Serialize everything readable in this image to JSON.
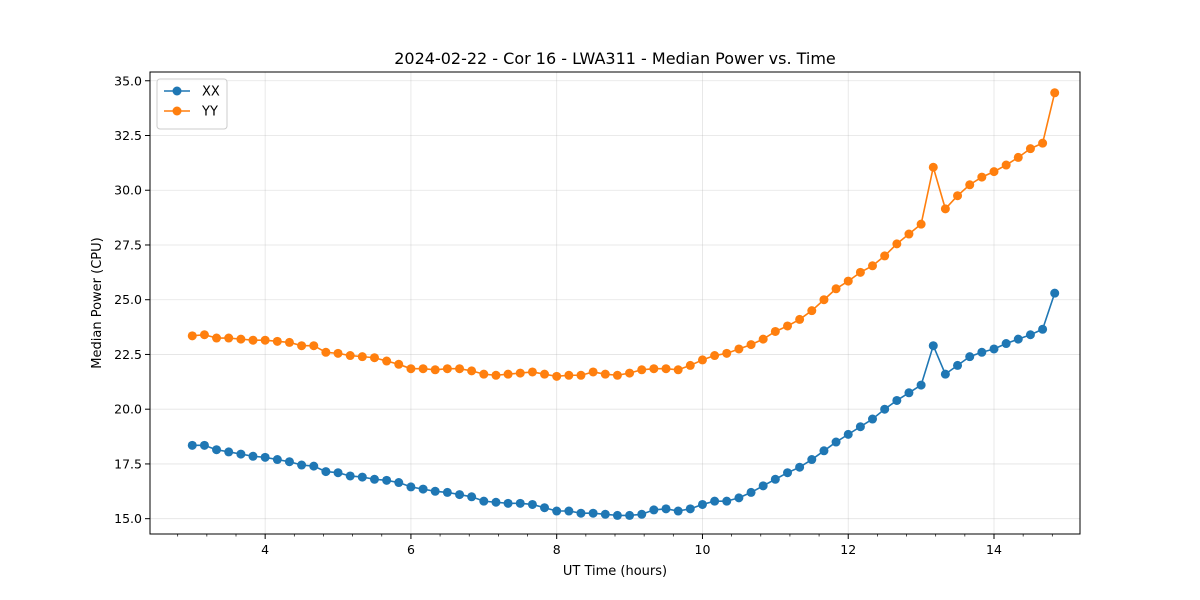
{
  "chart_data": {
    "type": "line",
    "title": "2024-02-22 - Cor 16 - LWA311 - Median Power vs. Time",
    "xlabel": "UT Time (hours)",
    "ylabel": "Median Power (CPU)",
    "xlim": [
      2.42,
      15.18
    ],
    "ylim": [
      14.3,
      35.4
    ],
    "xticks": [
      4,
      6,
      8,
      10,
      12,
      14
    ],
    "xtick_labels": [
      "4",
      "6",
      "8",
      "10",
      "12",
      "14"
    ],
    "yticks": [
      15.0,
      17.5,
      20.0,
      22.5,
      25.0,
      27.5,
      30.0,
      32.5,
      35.0
    ],
    "ytick_labels": [
      "15.0",
      "17.5",
      "20.0",
      "22.5",
      "25.0",
      "27.5",
      "30.0",
      "32.5",
      "35.0"
    ],
    "grid": true,
    "legend_position": "top-left",
    "x": [
      3.0,
      3.167,
      3.333,
      3.5,
      3.667,
      3.833,
      4.0,
      4.167,
      4.333,
      4.5,
      4.667,
      4.833,
      5.0,
      5.167,
      5.333,
      5.5,
      5.667,
      5.833,
      6.0,
      6.167,
      6.333,
      6.5,
      6.667,
      6.833,
      7.0,
      7.167,
      7.333,
      7.5,
      7.667,
      7.833,
      8.0,
      8.167,
      8.333,
      8.5,
      8.667,
      8.833,
      9.0,
      9.167,
      9.333,
      9.5,
      9.667,
      9.833,
      10.0,
      10.167,
      10.333,
      10.5,
      10.667,
      10.833,
      11.0,
      11.167,
      11.333,
      11.5,
      11.667,
      11.833,
      12.0,
      12.167,
      12.333,
      12.5,
      12.667,
      12.833,
      13.0,
      13.167,
      13.333,
      13.5,
      13.667,
      13.833,
      14.0,
      14.167,
      14.333,
      14.5,
      14.667,
      14.833
    ],
    "series": [
      {
        "name": "XX",
        "color": "#1f77b4",
        "values": [
          18.35,
          18.35,
          18.15,
          18.05,
          17.95,
          17.85,
          17.8,
          17.7,
          17.6,
          17.45,
          17.4,
          17.15,
          17.1,
          16.95,
          16.9,
          16.8,
          16.75,
          16.65,
          16.45,
          16.35,
          16.25,
          16.2,
          16.1,
          16.0,
          15.8,
          15.75,
          15.7,
          15.7,
          15.65,
          15.5,
          15.35,
          15.35,
          15.25,
          15.25,
          15.2,
          15.15,
          15.15,
          15.2,
          15.4,
          15.45,
          15.35,
          15.45,
          15.65,
          15.8,
          15.8,
          15.95,
          16.2,
          16.5,
          16.8,
          17.1,
          17.35,
          17.7,
          18.1,
          18.5,
          18.85,
          19.2,
          19.55,
          20.0,
          20.4,
          20.75,
          21.1,
          22.9,
          21.6,
          22.0,
          22.4,
          22.6,
          22.75,
          23.0,
          23.2,
          23.4,
          23.65,
          25.3
        ]
      },
      {
        "name": "YY",
        "color": "#ff7f0e",
        "values": [
          23.35,
          23.4,
          23.25,
          23.25,
          23.2,
          23.15,
          23.15,
          23.1,
          23.05,
          22.9,
          22.9,
          22.6,
          22.55,
          22.45,
          22.4,
          22.35,
          22.2,
          22.05,
          21.85,
          21.85,
          21.8,
          21.85,
          21.85,
          21.75,
          21.6,
          21.55,
          21.6,
          21.65,
          21.7,
          21.6,
          21.5,
          21.55,
          21.55,
          21.7,
          21.6,
          21.55,
          21.65,
          21.8,
          21.85,
          21.85,
          21.8,
          22.0,
          22.25,
          22.45,
          22.55,
          22.75,
          22.95,
          23.2,
          23.55,
          23.8,
          24.1,
          24.5,
          25.0,
          25.5,
          25.85,
          26.25,
          26.55,
          27.0,
          27.55,
          28.0,
          28.45,
          31.05,
          29.15,
          29.75,
          30.25,
          30.6,
          30.85,
          31.15,
          31.5,
          31.9,
          32.15,
          34.45
        ]
      }
    ]
  }
}
